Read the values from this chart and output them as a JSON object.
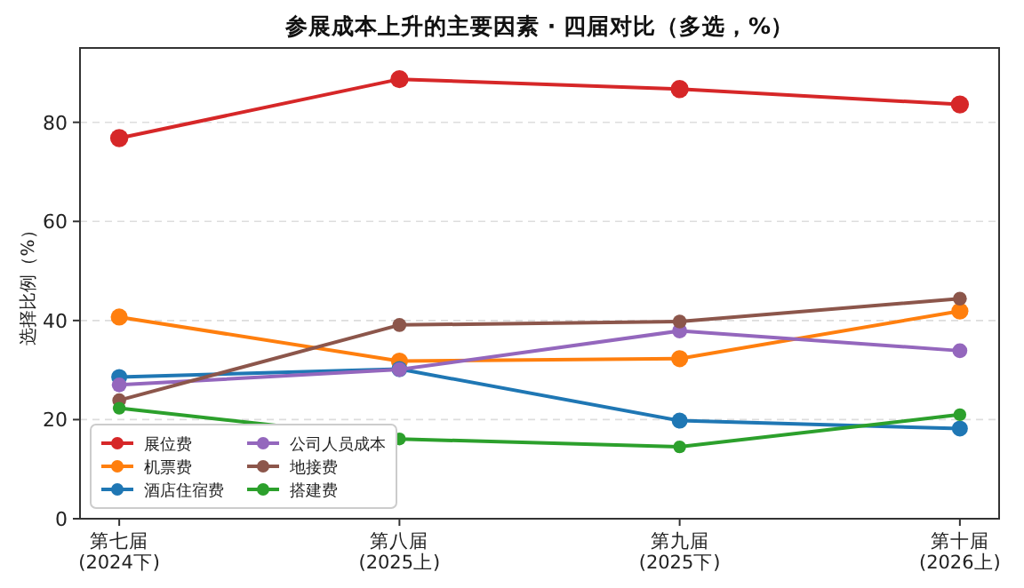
{
  "chart_data": {
    "type": "line",
    "title": "参展成本上升的主要因素 · 四届对比（多选，%）",
    "ylabel": "选择比例（%）",
    "categories": [
      "第七届\n(2024下)",
      "第八届\n(2025上)",
      "第九届\n(2025下)",
      "第十届\n(2026上)"
    ],
    "series": [
      {
        "name": "展位费",
        "color": "#d62728",
        "values": [
          76.8,
          88.7,
          86.7,
          83.6
        ]
      },
      {
        "name": "机票费",
        "color": "#ff7f0e",
        "values": [
          40.7,
          31.8,
          32.3,
          41.9
        ]
      },
      {
        "name": "酒店住宿费",
        "color": "#1f77b4",
        "values": [
          28.6,
          30.2,
          19.8,
          18.2
        ]
      },
      {
        "name": "公司人员成本",
        "color": "#9467bd",
        "values": [
          27.0,
          30.1,
          37.9,
          33.9
        ]
      },
      {
        "name": "地接费",
        "color": "#8c564b",
        "values": [
          23.9,
          39.1,
          39.8,
          44.4
        ]
      },
      {
        "name": "搭建费",
        "color": "#2ca02c",
        "values": [
          22.3,
          16.1,
          14.5,
          21.0
        ]
      }
    ],
    "ylim": [
      0,
      95
    ],
    "yticks": [
      0,
      20,
      40,
      60,
      80
    ],
    "grid": "y",
    "legend": "bottom left",
    "marker": "circle",
    "line_style": "solid"
  }
}
